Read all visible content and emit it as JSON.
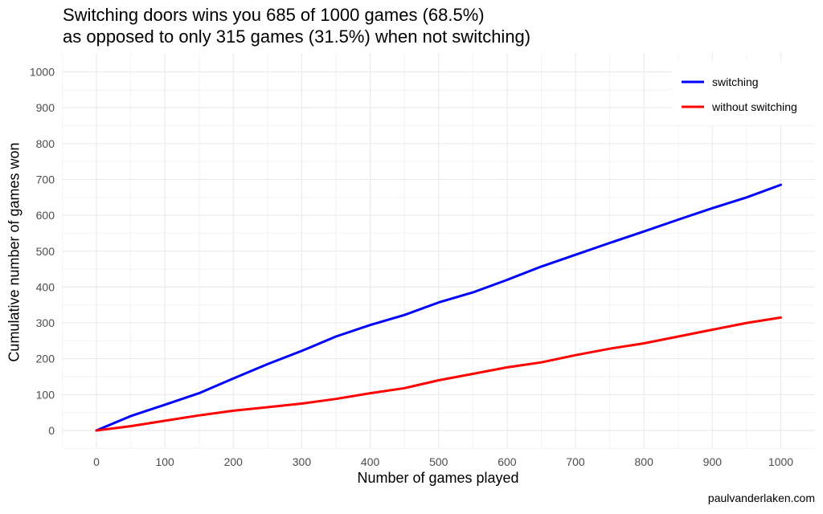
{
  "chart_data": {
    "type": "line",
    "title": "Switching doors wins you 685 of 1000 games (68.5%)",
    "subtitle": "as opposed to only 315 games (31.5%) when not switching)",
    "xlabel": "Number of games played",
    "ylabel": "Cumulative number of games won",
    "caption": "paulvanderlaken.com",
    "xlim": [
      0,
      1000
    ],
    "ylim": [
      0,
      1000
    ],
    "x_ticks": [
      "0",
      "100",
      "200",
      "300",
      "400",
      "500",
      "600",
      "700",
      "800",
      "900",
      "1000"
    ],
    "y_ticks": [
      "0",
      "100",
      "200",
      "300",
      "400",
      "500",
      "600",
      "700",
      "800",
      "900",
      "1000"
    ],
    "grid": true,
    "legend_position": "top-right",
    "series": [
      {
        "name": "switching",
        "color": "#0000ff",
        "x": [
          0,
          50,
          100,
          150,
          200,
          250,
          300,
          350,
          400,
          450,
          500,
          550,
          600,
          650,
          700,
          750,
          800,
          850,
          900,
          950,
          1000
        ],
        "y": [
          0,
          40,
          72,
          104,
          145,
          185,
          222,
          262,
          294,
          322,
          357,
          385,
          420,
          457,
          490,
          523,
          555,
          588,
          620,
          650,
          685
        ]
      },
      {
        "name": "without switching",
        "color": "#ff0000",
        "x": [
          0,
          50,
          100,
          150,
          200,
          250,
          300,
          350,
          400,
          450,
          500,
          550,
          600,
          650,
          700,
          750,
          800,
          850,
          900,
          950,
          1000
        ],
        "y": [
          0,
          12,
          27,
          42,
          55,
          65,
          75,
          88,
          104,
          118,
          140,
          158,
          176,
          190,
          210,
          228,
          243,
          262,
          281,
          300,
          315
        ]
      }
    ]
  }
}
